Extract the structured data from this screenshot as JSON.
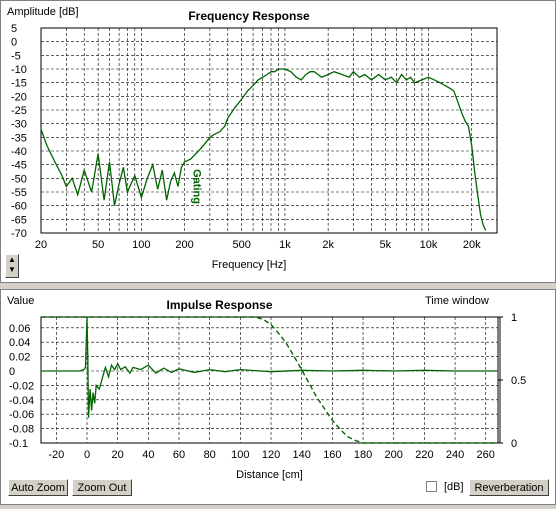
{
  "freq": {
    "title": "Frequency Response",
    "y_label": "Amplitude [dB]",
    "x_label": "Frequency [Hz]",
    "gate_label": "Gating",
    "y_ticks": [
      "5",
      "0",
      "-5",
      "-10",
      "-15",
      "-20",
      "-25",
      "-30",
      "-35",
      "-40",
      "-45",
      "-50",
      "-55",
      "-60",
      "-65",
      "-70"
    ],
    "x_ticks": [
      "20",
      "50",
      "100",
      "200",
      "500",
      "1k",
      "2k",
      "5k",
      "10k",
      "20k"
    ]
  },
  "imp": {
    "title": "Impulse Response",
    "y_label": "Value",
    "x_label": "Distance [cm]",
    "window_label": "Time window",
    "y_ticks": [
      "0.06",
      "0.04",
      "0.02",
      "0",
      "-0.02",
      "-0.04",
      "-0.06",
      "-0.08",
      "-0.1"
    ],
    "x_ticks": [
      "-20",
      "0",
      "20",
      "40",
      "60",
      "80",
      "100",
      "120",
      "140",
      "160",
      "180",
      "200",
      "220",
      "240",
      "260"
    ],
    "right_ticks": [
      "1",
      "0.5",
      "0"
    ]
  },
  "controls": {
    "auto_zoom": "Auto Zoom",
    "zoom_out": "Zoom Out",
    "db_label": "[dB]",
    "reverberation": "Reverberation",
    "db_checked": false
  },
  "colors": {
    "trace": "#006400",
    "grid": "#000000",
    "background": "#ffffff"
  },
  "chart_data": [
    {
      "type": "line",
      "title": "Frequency Response",
      "xlabel": "Frequency [Hz]",
      "ylabel": "Amplitude [dB]",
      "x_scale": "log",
      "xlim": [
        20,
        30000
      ],
      "ylim": [
        -70,
        5
      ],
      "grid": true,
      "series": [
        {
          "x": [
            20,
            22,
            25,
            28,
            30,
            33,
            36,
            40,
            45,
            50,
            55,
            60,
            65,
            70,
            75,
            80,
            90,
            100,
            110,
            120,
            130,
            140,
            150,
            160,
            170,
            180,
            190,
            200,
            220,
            250,
            280,
            300,
            320,
            350,
            380,
            400,
            450,
            500,
            550,
            600,
            650,
            700,
            750,
            800,
            850,
            900,
            950,
            1000,
            1100,
            1200,
            1300,
            1400,
            1500,
            1600,
            1700,
            1800,
            2000,
            2200,
            2500,
            2800,
            3000,
            3300,
            3600,
            4000,
            4500,
            5000,
            5500,
            6000,
            6500,
            7000,
            7500,
            8000,
            9000,
            10000,
            11000,
            12000,
            13000,
            14000,
            15000,
            16000,
            17000,
            18000,
            19000,
            20000,
            21000,
            22000,
            23000,
            24000,
            25000
          ],
          "y": [
            -32,
            -38,
            -44,
            -49,
            -53,
            -50,
            -56,
            -47,
            -55,
            -41,
            -58,
            -44,
            -60,
            -52,
            -46,
            -55,
            -49,
            -57,
            -50,
            -45,
            -54,
            -47,
            -58,
            -51,
            -48,
            -53,
            -46,
            -44,
            -43,
            -40,
            -37,
            -35,
            -34,
            -33,
            -31,
            -28,
            -24,
            -21,
            -18,
            -16,
            -14,
            -13,
            -12,
            -11,
            -11,
            -10,
            -10,
            -10,
            -11,
            -13,
            -14,
            -12,
            -11,
            -11,
            -12,
            -13,
            -12,
            -11,
            -12,
            -13,
            -11,
            -13,
            -12,
            -14,
            -12,
            -14,
            -13,
            -15,
            -12,
            -14,
            -13,
            -15,
            -14,
            -13,
            -14,
            -15,
            -16,
            -17,
            -18,
            -22,
            -26,
            -29,
            -31,
            -38,
            -48,
            -56,
            -63,
            -67,
            -69
          ]
        }
      ]
    },
    {
      "type": "line",
      "title": "Impulse Response",
      "xlabel": "Distance [cm]",
      "ylabel": "Value",
      "xlim": [
        -30,
        268
      ],
      "ylim": [
        -0.1,
        0.075
      ],
      "grid": true,
      "series": [
        {
          "x": [
            -30,
            -5,
            -2,
            -1,
            0,
            0.5,
            1,
            2,
            3,
            4,
            5,
            6,
            8,
            10,
            12,
            14,
            16,
            18,
            20,
            22,
            25,
            28,
            30,
            35,
            40,
            45,
            50,
            55,
            60,
            70,
            80,
            90,
            100,
            120,
            140,
            160,
            180,
            200,
            220,
            240,
            260,
            268
          ],
          "y": [
            0,
            0,
            0.002,
            0.005,
            0.075,
            0.02,
            -0.065,
            -0.025,
            -0.055,
            -0.03,
            -0.045,
            -0.02,
            -0.025,
            -0.01,
            0.005,
            -0.008,
            0.008,
            0.002,
            0.01,
            0.002,
            0.006,
            -0.003,
            0.005,
            0.002,
            0.008,
            -0.003,
            0.004,
            -0.002,
            0.003,
            -0.002,
            0.002,
            -0.001,
            0.002,
            -0.001,
            0.001,
            0,
            0.001,
            0,
            0.001,
            0,
            0,
            0
          ]
        },
        {
          "name": "Time window",
          "axis": "right",
          "ylim": [
            0,
            1
          ],
          "x": [
            -30,
            110,
            115,
            120,
            125,
            130,
            135,
            140,
            145,
            150,
            155,
            160,
            165,
            170,
            175,
            180,
            268
          ],
          "y": [
            1,
            1,
            0.98,
            0.94,
            0.87,
            0.79,
            0.69,
            0.58,
            0.47,
            0.36,
            0.27,
            0.18,
            0.11,
            0.05,
            0.02,
            0,
            0
          ]
        }
      ]
    }
  ]
}
